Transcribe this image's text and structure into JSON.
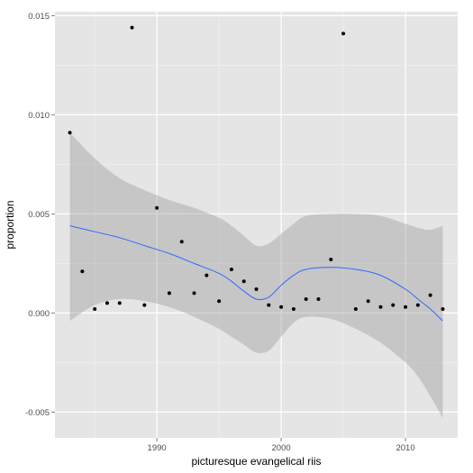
{
  "chart_data": {
    "type": "scatter",
    "title": "",
    "xlabel": "picturesque evangelical riis",
    "ylabel": "proportion",
    "xlim": [
      1981.8,
      2014.2
    ],
    "ylim": [
      -0.0063,
      0.0152
    ],
    "x_ticks": [
      1990,
      2000,
      2010
    ],
    "x_tick_labels": [
      "1990",
      "2000",
      "2010"
    ],
    "y_ticks": [
      -0.005,
      0.0,
      0.005,
      0.01,
      0.015
    ],
    "y_tick_labels": [
      "-0.005",
      "0.000",
      "0.005",
      "0.010",
      "0.015"
    ],
    "grid": true,
    "legend": "none",
    "colors": {
      "panel": "#e5e5e5",
      "grid_major": "#ffffff",
      "grid_minor": "#f2f2f2",
      "point": "#000000",
      "smooth": "#3366ff",
      "ribbon": "#999999"
    },
    "points": [
      {
        "x": 1983,
        "y": 0.0091
      },
      {
        "x": 1984,
        "y": 0.0021
      },
      {
        "x": 1985,
        "y": 0.0002
      },
      {
        "x": 1986,
        "y": 0.0005
      },
      {
        "x": 1987,
        "y": 0.0005
      },
      {
        "x": 1988,
        "y": 0.0144
      },
      {
        "x": 1989,
        "y": 0.0004
      },
      {
        "x": 1990,
        "y": 0.0053
      },
      {
        "x": 1991,
        "y": 0.001
      },
      {
        "x": 1992,
        "y": 0.0036
      },
      {
        "x": 1993,
        "y": 0.001
      },
      {
        "x": 1994,
        "y": 0.0019
      },
      {
        "x": 1995,
        "y": 0.0006
      },
      {
        "x": 1996,
        "y": 0.0022
      },
      {
        "x": 1997,
        "y": 0.0016
      },
      {
        "x": 1998,
        "y": 0.0012
      },
      {
        "x": 1999,
        "y": 0.0004
      },
      {
        "x": 2000,
        "y": 0.0003
      },
      {
        "x": 2001,
        "y": 0.0002
      },
      {
        "x": 2002,
        "y": 0.0007
      },
      {
        "x": 2003,
        "y": 0.0007
      },
      {
        "x": 2004,
        "y": 0.0027
      },
      {
        "x": 2005,
        "y": 0.0141
      },
      {
        "x": 2006,
        "y": 0.0002
      },
      {
        "x": 2007,
        "y": 0.0006
      },
      {
        "x": 2008,
        "y": 0.0003
      },
      {
        "x": 2009,
        "y": 0.0004
      },
      {
        "x": 2010,
        "y": 0.0003
      },
      {
        "x": 2011,
        "y": 0.0004
      },
      {
        "x": 2012,
        "y": 0.0009
      },
      {
        "x": 2013,
        "y": 0.0002
      }
    ],
    "smooth": {
      "x": [
        1983,
        1985,
        1987,
        1989,
        1991,
        1993,
        1995,
        1996,
        1997,
        1998,
        1999,
        2000,
        2001,
        2002,
        2004,
        2006,
        2008,
        2010,
        2011,
        2012,
        2013
      ],
      "y": [
        0.0044,
        0.0041,
        0.0038,
        0.0034,
        0.003,
        0.0025,
        0.002,
        0.0016,
        0.0011,
        0.0007,
        0.0008,
        0.0014,
        0.0019,
        0.0022,
        0.0023,
        0.0022,
        0.0019,
        0.0012,
        0.0007,
        0.0002,
        -0.0004
      ],
      "lower": [
        -0.0004,
        0.0004,
        0.0007,
        0.0006,
        0.0003,
        -0.0002,
        -0.0008,
        -0.0012,
        -0.0016,
        -0.002,
        -0.0019,
        -0.0012,
        -0.0005,
        -0.0002,
        -0.0003,
        -0.0008,
        -0.0015,
        -0.0025,
        -0.0032,
        -0.0042,
        -0.0053
      ],
      "upper": [
        0.0091,
        0.0078,
        0.0068,
        0.0062,
        0.0057,
        0.0053,
        0.0048,
        0.0044,
        0.0039,
        0.0034,
        0.0035,
        0.004,
        0.0045,
        0.0049,
        0.005,
        0.005,
        0.0049,
        0.0045,
        0.0043,
        0.0042,
        0.0044
      ]
    }
  }
}
